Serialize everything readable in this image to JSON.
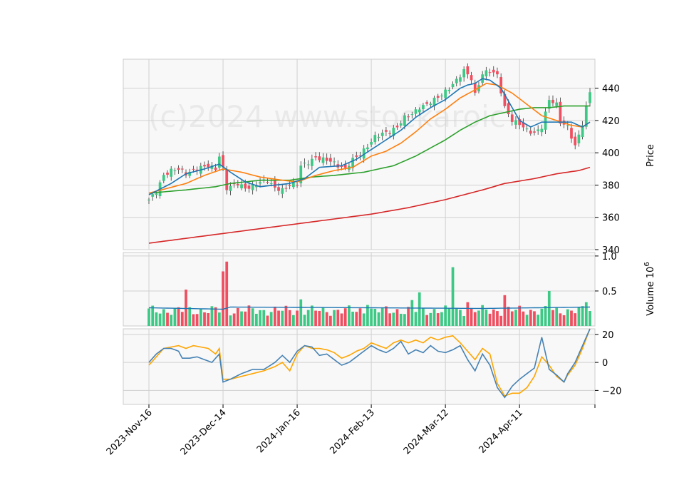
{
  "chart_data": {
    "type": "candlestick",
    "watermark": "(c)2024 www.stockaroic",
    "x_ticks": [
      "2023-Nov-16",
      "2023-Dec-14",
      "2024-Jan-16",
      "2024-Feb-13",
      "2024-Mar-12",
      "2024-Apr-11"
    ],
    "x_tick_index": [
      0,
      20,
      40,
      60,
      80,
      100
    ],
    "n_bars": 120,
    "colors": {
      "up": "#3dc985",
      "down": "#ef4f60",
      "ma_short": "#1f77b4",
      "ma_mid": "#ff7f0e",
      "ma_long": "#2ca02c",
      "ma_200": "#d62728",
      "vol_ma": "#1f77b4",
      "osc_fast": "#4682b4",
      "osc_slow": "#ffa500"
    },
    "price_panel": {
      "ylabel": "Price",
      "ylim": [
        340,
        458
      ],
      "yticks": [
        340,
        360,
        380,
        400,
        420,
        440
      ],
      "candles_ohlc_anchor": [
        [
          0,
          371
        ],
        [
          2,
          376
        ],
        [
          4,
          386
        ],
        [
          6,
          389
        ],
        [
          8,
          390
        ],
        [
          10,
          387
        ],
        [
          12,
          389
        ],
        [
          14,
          391
        ],
        [
          16,
          392
        ],
        [
          18,
          390
        ],
        [
          19,
          398
        ],
        [
          20,
          390
        ],
        [
          21,
          378
        ],
        [
          22,
          379
        ],
        [
          24,
          381
        ],
        [
          26,
          378
        ],
        [
          28,
          379
        ],
        [
          30,
          382
        ],
        [
          32,
          383
        ],
        [
          34,
          378
        ],
        [
          36,
          377
        ],
        [
          38,
          380
        ],
        [
          40,
          381
        ],
        [
          41,
          392
        ],
        [
          43,
          394
        ],
        [
          45,
          397
        ],
        [
          47,
          396
        ],
        [
          49,
          395
        ],
        [
          51,
          392
        ],
        [
          53,
          390
        ],
        [
          55,
          396
        ],
        [
          57,
          399
        ],
        [
          59,
          404
        ],
        [
          61,
          410
        ],
        [
          63,
          412
        ],
        [
          65,
          413
        ],
        [
          67,
          416
        ],
        [
          69,
          422
        ],
        [
          71,
          424
        ],
        [
          73,
          428
        ],
        [
          75,
          430
        ],
        [
          77,
          433
        ],
        [
          79,
          436
        ],
        [
          81,
          440
        ],
        [
          83,
          445
        ],
        [
          85,
          451
        ],
        [
          87,
          446
        ],
        [
          88,
          436
        ],
        [
          90,
          449
        ],
        [
          92,
          451
        ],
        [
          94,
          448
        ],
        [
          96,
          428
        ],
        [
          98,
          420
        ],
        [
          100,
          418
        ],
        [
          102,
          414
        ],
        [
          104,
          412
        ],
        [
          106,
          416
        ],
        [
          108,
          433
        ],
        [
          110,
          430
        ],
        [
          111,
          419
        ],
        [
          113,
          416
        ],
        [
          115,
          404
        ],
        [
          117,
          418
        ],
        [
          118,
          428
        ],
        [
          119,
          438
        ]
      ],
      "ma_short": [
        [
          0,
          374
        ],
        [
          6,
          381
        ],
        [
          10,
          387
        ],
        [
          15,
          390
        ],
        [
          19,
          393
        ],
        [
          22,
          388
        ],
        [
          26,
          382
        ],
        [
          30,
          379
        ],
        [
          34,
          380
        ],
        [
          38,
          381
        ],
        [
          42,
          384
        ],
        [
          46,
          391
        ],
        [
          52,
          392
        ],
        [
          56,
          396
        ],
        [
          60,
          402
        ],
        [
          64,
          408
        ],
        [
          68,
          414
        ],
        [
          72,
          422
        ],
        [
          76,
          428
        ],
        [
          80,
          433
        ],
        [
          84,
          440
        ],
        [
          86,
          442
        ],
        [
          88,
          443
        ],
        [
          90,
          446
        ],
        [
          92,
          445
        ],
        [
          95,
          440
        ],
        [
          98,
          428
        ],
        [
          100,
          420
        ],
        [
          103,
          416
        ],
        [
          106,
          419
        ],
        [
          110,
          419
        ],
        [
          114,
          419
        ],
        [
          117,
          416
        ],
        [
          119,
          419
        ]
      ],
      "ma_mid": [
        [
          0,
          375
        ],
        [
          5,
          378
        ],
        [
          10,
          381
        ],
        [
          15,
          386
        ],
        [
          20,
          390
        ],
        [
          25,
          388
        ],
        [
          30,
          385
        ],
        [
          36,
          383
        ],
        [
          40,
          382
        ],
        [
          45,
          386
        ],
        [
          50,
          389
        ],
        [
          55,
          391
        ],
        [
          60,
          398
        ],
        [
          64,
          401
        ],
        [
          68,
          406
        ],
        [
          72,
          413
        ],
        [
          76,
          421
        ],
        [
          80,
          427
        ],
        [
          84,
          434
        ],
        [
          88,
          439
        ],
        [
          91,
          443
        ],
        [
          94,
          442
        ],
        [
          98,
          437
        ],
        [
          102,
          430
        ],
        [
          106,
          423
        ],
        [
          110,
          420
        ],
        [
          114,
          417
        ],
        [
          117,
          416
        ],
        [
          119,
          419
        ]
      ],
      "ma_long": [
        [
          0,
          375
        ],
        [
          10,
          377
        ],
        [
          18,
          379
        ],
        [
          22,
          381
        ],
        [
          30,
          383
        ],
        [
          38,
          383
        ],
        [
          44,
          385
        ],
        [
          50,
          386
        ],
        [
          58,
          388
        ],
        [
          66,
          392
        ],
        [
          72,
          398
        ],
        [
          76,
          403
        ],
        [
          80,
          408
        ],
        [
          84,
          414
        ],
        [
          88,
          419
        ],
        [
          92,
          423
        ],
        [
          96,
          425
        ],
        [
          100,
          427
        ],
        [
          104,
          428
        ],
        [
          108,
          428
        ],
        [
          112,
          429
        ],
        [
          116,
          429
        ],
        [
          119,
          429
        ]
      ],
      "ma_200": [
        [
          0,
          344
        ],
        [
          10,
          347
        ],
        [
          20,
          350
        ],
        [
          30,
          353
        ],
        [
          40,
          356
        ],
        [
          50,
          359
        ],
        [
          60,
          362
        ],
        [
          70,
          366
        ],
        [
          80,
          371
        ],
        [
          90,
          377
        ],
        [
          96,
          381
        ],
        [
          104,
          384
        ],
        [
          110,
          387
        ],
        [
          116,
          389
        ],
        [
          119,
          391
        ]
      ]
    },
    "volume_panel": {
      "ylabel": "Volume  10^6",
      "ylim": [
        0,
        1.0
      ],
      "yticks": [
        0.5,
        1.0
      ],
      "ytick_labels": [
        "0.5",
        "1.0"
      ],
      "spikes": [
        [
          10,
          0.52
        ],
        [
          20,
          0.78
        ],
        [
          21,
          0.92
        ],
        [
          41,
          0.38
        ],
        [
          59,
          0.3
        ],
        [
          71,
          0.37
        ],
        [
          73,
          0.48
        ],
        [
          82,
          0.84
        ],
        [
          86,
          0.34
        ],
        [
          96,
          0.44
        ],
        [
          108,
          0.5
        ],
        [
          118,
          0.34
        ]
      ],
      "base_volume": 0.22,
      "ma_value": 0.26
    },
    "osc_panel": {
      "ylim": [
        -30,
        24
      ],
      "yticks": [
        -20,
        0,
        20
      ],
      "ytick_labels": [
        "−20",
        "0",
        "20"
      ],
      "fast": [
        [
          0,
          0
        ],
        [
          2,
          6
        ],
        [
          4,
          10
        ],
        [
          6,
          10
        ],
        [
          8,
          8
        ],
        [
          9,
          3
        ],
        [
          11,
          3
        ],
        [
          13,
          4
        ],
        [
          15,
          2
        ],
        [
          17,
          0
        ],
        [
          19,
          6
        ],
        [
          20,
          -14
        ],
        [
          22,
          -12
        ],
        [
          25,
          -8
        ],
        [
          28,
          -5
        ],
        [
          31,
          -5
        ],
        [
          34,
          0
        ],
        [
          36,
          5
        ],
        [
          38,
          0
        ],
        [
          40,
          8
        ],
        [
          42,
          12
        ],
        [
          44,
          11
        ],
        [
          46,
          5
        ],
        [
          48,
          6
        ],
        [
          50,
          2
        ],
        [
          52,
          -2
        ],
        [
          54,
          0
        ],
        [
          56,
          4
        ],
        [
          58,
          8
        ],
        [
          60,
          12
        ],
        [
          62,
          9
        ],
        [
          64,
          7
        ],
        [
          66,
          10
        ],
        [
          68,
          15
        ],
        [
          70,
          6
        ],
        [
          72,
          9
        ],
        [
          74,
          7
        ],
        [
          76,
          12
        ],
        [
          78,
          8
        ],
        [
          80,
          7
        ],
        [
          82,
          9
        ],
        [
          84,
          12
        ],
        [
          86,
          2
        ],
        [
          88,
          -6
        ],
        [
          90,
          6
        ],
        [
          92,
          -2
        ],
        [
          94,
          -18
        ],
        [
          96,
          -25
        ],
        [
          98,
          -17
        ],
        [
          100,
          -12
        ],
        [
          102,
          -8
        ],
        [
          104,
          -4
        ],
        [
          106,
          18
        ],
        [
          108,
          -5
        ],
        [
          110,
          -9
        ],
        [
          112,
          -14
        ],
        [
          113,
          -8
        ],
        [
          115,
          0
        ],
        [
          117,
          12
        ],
        [
          119,
          24
        ]
      ],
      "slow": [
        [
          0,
          -2
        ],
        [
          2,
          4
        ],
        [
          4,
          10
        ],
        [
          6,
          11
        ],
        [
          8,
          12
        ],
        [
          10,
          10
        ],
        [
          12,
          12
        ],
        [
          14,
          11
        ],
        [
          16,
          10
        ],
        [
          18,
          6
        ],
        [
          19,
          10
        ],
        [
          20,
          -12
        ],
        [
          22,
          -12
        ],
        [
          25,
          -10
        ],
        [
          28,
          -8
        ],
        [
          31,
          -6
        ],
        [
          34,
          -3
        ],
        [
          36,
          0
        ],
        [
          38,
          -6
        ],
        [
          40,
          6
        ],
        [
          42,
          12
        ],
        [
          44,
          10
        ],
        [
          46,
          10
        ],
        [
          48,
          9
        ],
        [
          50,
          7
        ],
        [
          52,
          3
        ],
        [
          54,
          5
        ],
        [
          56,
          8
        ],
        [
          58,
          10
        ],
        [
          60,
          14
        ],
        [
          62,
          12
        ],
        [
          64,
          10
        ],
        [
          66,
          14
        ],
        [
          68,
          16
        ],
        [
          70,
          14
        ],
        [
          72,
          16
        ],
        [
          74,
          14
        ],
        [
          76,
          18
        ],
        [
          78,
          16
        ],
        [
          80,
          18
        ],
        [
          82,
          19
        ],
        [
          84,
          14
        ],
        [
          86,
          8
        ],
        [
          88,
          2
        ],
        [
          90,
          10
        ],
        [
          92,
          6
        ],
        [
          94,
          -15
        ],
        [
          96,
          -24
        ],
        [
          98,
          -22
        ],
        [
          100,
          -22
        ],
        [
          102,
          -18
        ],
        [
          104,
          -10
        ],
        [
          106,
          4
        ],
        [
          108,
          -2
        ],
        [
          110,
          -10
        ],
        [
          112,
          -14
        ],
        [
          113,
          -9
        ],
        [
          115,
          -2
        ],
        [
          117,
          10
        ],
        [
          119,
          24
        ]
      ]
    }
  }
}
